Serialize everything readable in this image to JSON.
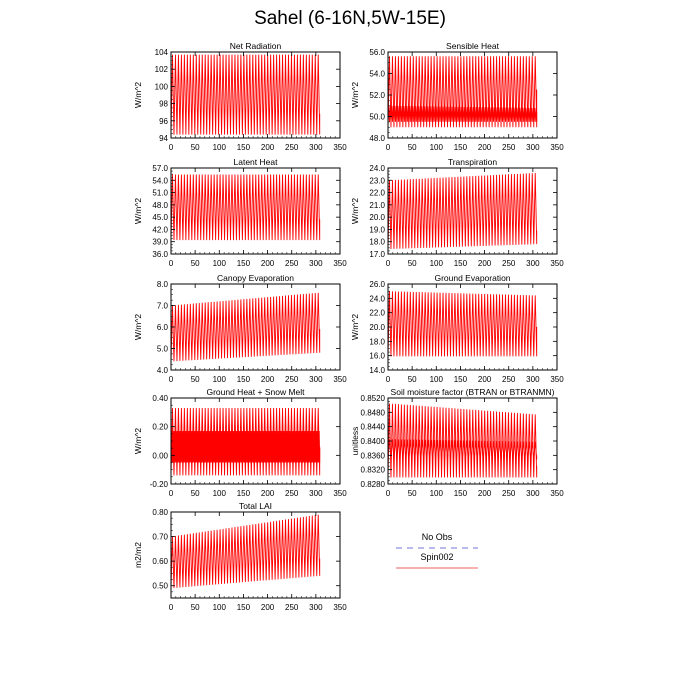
{
  "figure": {
    "title": "Sahel (6-16N,5W-15E)",
    "legend": [
      {
        "label": "No Obs",
        "color": "#8f8fe0",
        "style": "dashed"
      },
      {
        "label": "Spin002",
        "color": "#f08080",
        "style": "solid"
      }
    ]
  },
  "chart_data": [
    {
      "type": "line",
      "title": "Net Radiation",
      "ylabel": "W/m^2",
      "xlim": [
        0,
        350
      ],
      "xticks": [
        0,
        50,
        100,
        150,
        200,
        250,
        300,
        350
      ],
      "ylim": [
        94,
        104
      ],
      "yticks": [
        94,
        96,
        98,
        100,
        102,
        104
      ],
      "ytick_decimals": 0,
      "series": [
        {
          "color": "#ff0000",
          "cycles": 50,
          "x_end": 308,
          "lo": 94.4,
          "hi": 103.7,
          "note_lo": [
            94.4,
            94.4
          ],
          "note_hi": [
            103.7,
            103.7
          ],
          "final_value": 96.8
        }
      ]
    },
    {
      "type": "line",
      "title": "Sensible Heat",
      "ylabel": "W/m^2",
      "xlim": [
        0,
        350
      ],
      "xticks": [
        0,
        50,
        100,
        150,
        200,
        250,
        300,
        350
      ],
      "ylim": [
        48,
        56
      ],
      "yticks": [
        48.0,
        50.0,
        52.0,
        54.0,
        56.0
      ],
      "ytick_decimals": 1,
      "series": [
        {
          "color": "#ff0000",
          "cycles": 50,
          "x_end": 308,
          "lo_start": 49.0,
          "lo_end": 49.0,
          "hi_start": 55.6,
          "hi_end": 55.6,
          "final_value": 52.5
        },
        {
          "color": "#ff0000",
          "cycles": 100,
          "x_end": 308,
          "lo_start": 49.5,
          "lo_end": 49.5,
          "hi_start": 51.0,
          "hi_end": 50.8,
          "final_value": 50.4
        }
      ]
    },
    {
      "type": "line",
      "title": "Latent Heat",
      "ylabel": "W/m^2",
      "xlim": [
        0,
        350
      ],
      "xticks": [
        0,
        50,
        100,
        150,
        200,
        250,
        300,
        350
      ],
      "ylim": [
        36,
        57
      ],
      "yticks": [
        36.0,
        39.0,
        42.0,
        45.0,
        48.0,
        51.0,
        54.0,
        57.0
      ],
      "ytick_decimals": 1,
      "series": [
        {
          "color": "#ff0000",
          "cycles": 50,
          "x_end": 308,
          "lo_start": 39.4,
          "lo_end": 39.4,
          "hi_start": 55.4,
          "hi_end": 55.4,
          "final_value": 44.5
        }
      ]
    },
    {
      "type": "line",
      "title": "Transpiration",
      "ylabel": "W/m^2",
      "xlim": [
        0,
        350
      ],
      "xticks": [
        0,
        50,
        100,
        150,
        200,
        250,
        300,
        350
      ],
      "ylim": [
        17,
        24
      ],
      "yticks": [
        17.0,
        18.0,
        19.0,
        20.0,
        21.0,
        22.0,
        23.0,
        24.0
      ],
      "ytick_decimals": 1,
      "series": [
        {
          "color": "#ff0000",
          "cycles": 50,
          "x_end": 308,
          "lo_start": 17.4,
          "lo_end": 17.8,
          "hi_start": 23.0,
          "hi_end": 23.6,
          "final_value": 18.9
        }
      ]
    },
    {
      "type": "line",
      "title": "Canopy Evaporation",
      "ylabel": "W/m^2",
      "xlim": [
        0,
        350
      ],
      "xticks": [
        0,
        50,
        100,
        150,
        200,
        250,
        300,
        350
      ],
      "ylim": [
        4.0,
        8.0
      ],
      "yticks": [
        4.0,
        5.0,
        6.0,
        7.0,
        8.0
      ],
      "ytick_decimals": 1,
      "series": [
        {
          "color": "#ff0000",
          "cycles": 50,
          "x_end": 308,
          "lo_start": 4.4,
          "lo_end": 4.8,
          "hi_start": 7.0,
          "hi_end": 7.6,
          "final_value": 5.9
        }
      ]
    },
    {
      "type": "line",
      "title": "Ground Evaporation",
      "ylabel": "W/m^2",
      "xlim": [
        0,
        350
      ],
      "xticks": [
        0,
        50,
        100,
        150,
        200,
        250,
        300,
        350
      ],
      "ylim": [
        14,
        26
      ],
      "yticks": [
        14.0,
        16.0,
        18.0,
        20.0,
        22.0,
        24.0,
        26.0
      ],
      "ytick_decimals": 1,
      "series": [
        {
          "color": "#ff0000",
          "cycles": 50,
          "x_end": 308,
          "lo_start": 15.9,
          "lo_end": 15.9,
          "hi_start": 25.0,
          "hi_end": 24.4,
          "final_value": 20.0
        }
      ]
    },
    {
      "type": "line",
      "title": "Ground Heat + Snow Melt",
      "ylabel": "W/m^2",
      "xlim": [
        0,
        350
      ],
      "xticks": [
        0,
        50,
        100,
        150,
        200,
        250,
        300,
        350
      ],
      "ylim": [
        -0.2,
        0.4
      ],
      "yticks": [
        -0.2,
        0.0,
        0.2,
        0.4
      ],
      "ytick_decimals": 2,
      "series": [
        {
          "color": "#ff0000",
          "cycles": 50,
          "x_end": 308,
          "lo_start": -0.14,
          "lo_end": -0.14,
          "hi_start": 0.33,
          "hi_end": 0.33,
          "final_value": 0.05
        },
        {
          "color": "#ff0000",
          "cycles": 150,
          "x_end": 308,
          "lo_start": -0.05,
          "lo_end": -0.05,
          "hi_start": 0.17,
          "hi_end": 0.17,
          "final_value": 0.06
        }
      ]
    },
    {
      "type": "line",
      "title": "Soil moisture factor (BTRAN or BTRANMN)",
      "ylabel": "unitless",
      "xlim": [
        0,
        350
      ],
      "xticks": [
        0,
        50,
        100,
        150,
        200,
        250,
        300,
        350
      ],
      "ylim": [
        0.828,
        0.852
      ],
      "yticks": [
        0.828,
        0.832,
        0.836,
        0.84,
        0.844,
        0.848,
        0.852
      ],
      "ytick_decimals": 4,
      "series": [
        {
          "color": "#ff0000",
          "cycles": 50,
          "x_end": 308,
          "lo_start": 0.8298,
          "lo_end": 0.8298,
          "hi_start": 0.8505,
          "hi_end": 0.8474,
          "final_value": 0.833
        },
        {
          "color": "#ff0000",
          "cycles": 50,
          "x_end": 308,
          "lo_start": 0.8348,
          "lo_end": 0.8348,
          "hi_start": 0.8405,
          "hi_end": 0.8398,
          "final_value": 0.836
        }
      ]
    },
    {
      "type": "line",
      "title": "Total LAI",
      "ylabel": "m2/m2",
      "xlim": [
        0,
        350
      ],
      "xticks": [
        0,
        50,
        100,
        150,
        200,
        250,
        300,
        350
      ],
      "ylim": [
        0.45,
        0.8
      ],
      "yticks": [
        0.5,
        0.6,
        0.7,
        0.8
      ],
      "ytick_decimals": 2,
      "series": [
        {
          "color": "#ff0000",
          "cycles": 50,
          "x_end": 308,
          "lo_start": 0.49,
          "lo_end": 0.54,
          "hi_start": 0.7,
          "hi_end": 0.79,
          "final_value": 0.61
        }
      ]
    }
  ]
}
